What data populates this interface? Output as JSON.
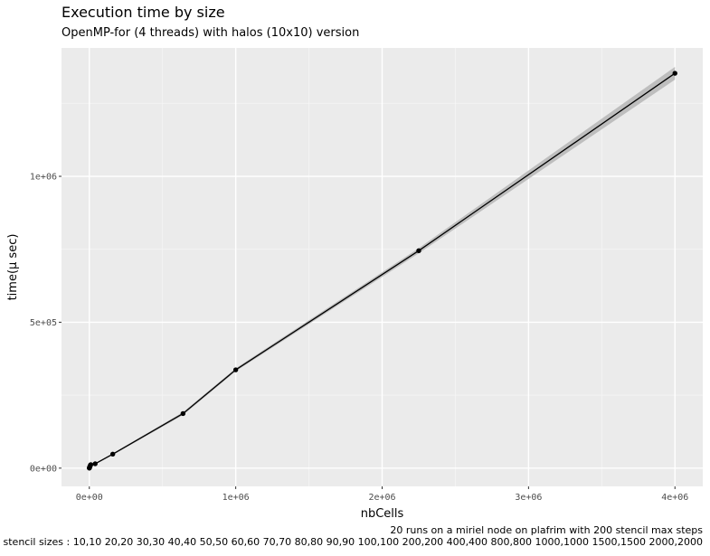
{
  "chart_data": {
    "type": "line",
    "title": "Execution time by size",
    "subtitle": "OpenMP-for (4 threads) with halos (10x10) version",
    "xlabel": "nbCells",
    "ylabel": "time(µ sec)",
    "xlim": [
      -190000,
      4190000
    ],
    "ylim": [
      -62500,
      1440000
    ],
    "x_ticks": [
      {
        "value": 0,
        "label": "0e+00"
      },
      {
        "value": 1000000,
        "label": "1e+06"
      },
      {
        "value": 2000000,
        "label": "2e+06"
      },
      {
        "value": 3000000,
        "label": "3e+06"
      },
      {
        "value": 4000000,
        "label": "4e+06"
      }
    ],
    "y_ticks": [
      {
        "value": 0,
        "label": "0e+00"
      },
      {
        "value": 500000,
        "label": "5e+05"
      },
      {
        "value": 1000000,
        "label": "1e+06"
      }
    ],
    "grid": true,
    "background": "#ebebeb",
    "series": [
      {
        "x": [
          100,
          400,
          900,
          1600,
          2500,
          3600,
          4900,
          6400,
          8100,
          10000,
          40000,
          160000,
          640000,
          1000000,
          2250000,
          4000000
        ],
        "y": [
          150,
          600,
          1300,
          2300,
          3600,
          5200,
          6800,
          8500,
          10300,
          12000,
          15000,
          48000,
          187000,
          337000,
          745000,
          1353000
        ],
        "ribbon_halfwidth": [
          500,
          600,
          700,
          800,
          900,
          1000,
          1100,
          1200,
          1300,
          1400,
          1800,
          3000,
          5000,
          5000,
          9000,
          22000
        ],
        "color": "#000000",
        "ribbon_color": "#bebebe"
      }
    ]
  },
  "captions": {
    "line1": "20 runs on a miriel node on plafrim with 200 stencil max steps",
    "line2": "stencil sizes : 10,10 20,20 30,30 40,40 50,50 60,60 70,70 80,80 90,90 100,100 200,200 400,400 800,800 1000,1000 1500,1500 2000,2000"
  }
}
